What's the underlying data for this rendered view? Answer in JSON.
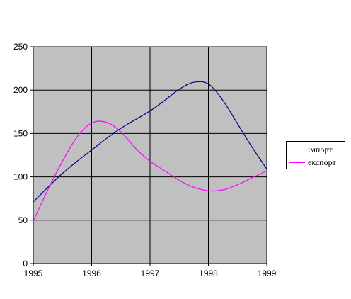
{
  "chart_data": {
    "type": "line",
    "x_ticks": [
      "1995",
      "1996",
      "1997",
      "1998",
      "1999"
    ],
    "y_ticks": [
      "0",
      "50",
      "100",
      "150",
      "200",
      "250"
    ],
    "xlim": [
      1995,
      1999
    ],
    "ylim": [
      0,
      250
    ],
    "grid": true,
    "plot_background": "#c0c0c0",
    "legend_position": "right",
    "series": [
      {
        "name": "імпорт",
        "color": "#000080",
        "x": [
          1995,
          1995.25,
          1995.5,
          1995.75,
          1996,
          1996.25,
          1996.5,
          1996.75,
          1997,
          1997.25,
          1997.5,
          1997.75,
          1998,
          1998.25,
          1998.5,
          1998.75,
          1999
        ],
        "y": [
          71,
          88,
          104,
          118,
          131,
          144,
          156,
          166,
          176,
          188,
          201,
          209,
          207,
          188,
          161,
          134,
          109
        ]
      },
      {
        "name": "експорт",
        "color": "#ff00ff",
        "x": [
          1995,
          1995.25,
          1995.5,
          1995.75,
          1996,
          1996.25,
          1996.5,
          1996.75,
          1997,
          1997.25,
          1997.5,
          1997.75,
          1998,
          1998.25,
          1998.5,
          1998.75,
          1999
        ],
        "y": [
          49,
          85,
          118,
          146,
          162,
          163,
          152,
          133,
          118,
          107,
          96,
          88,
          84,
          85,
          91,
          99,
          107
        ]
      }
    ]
  }
}
